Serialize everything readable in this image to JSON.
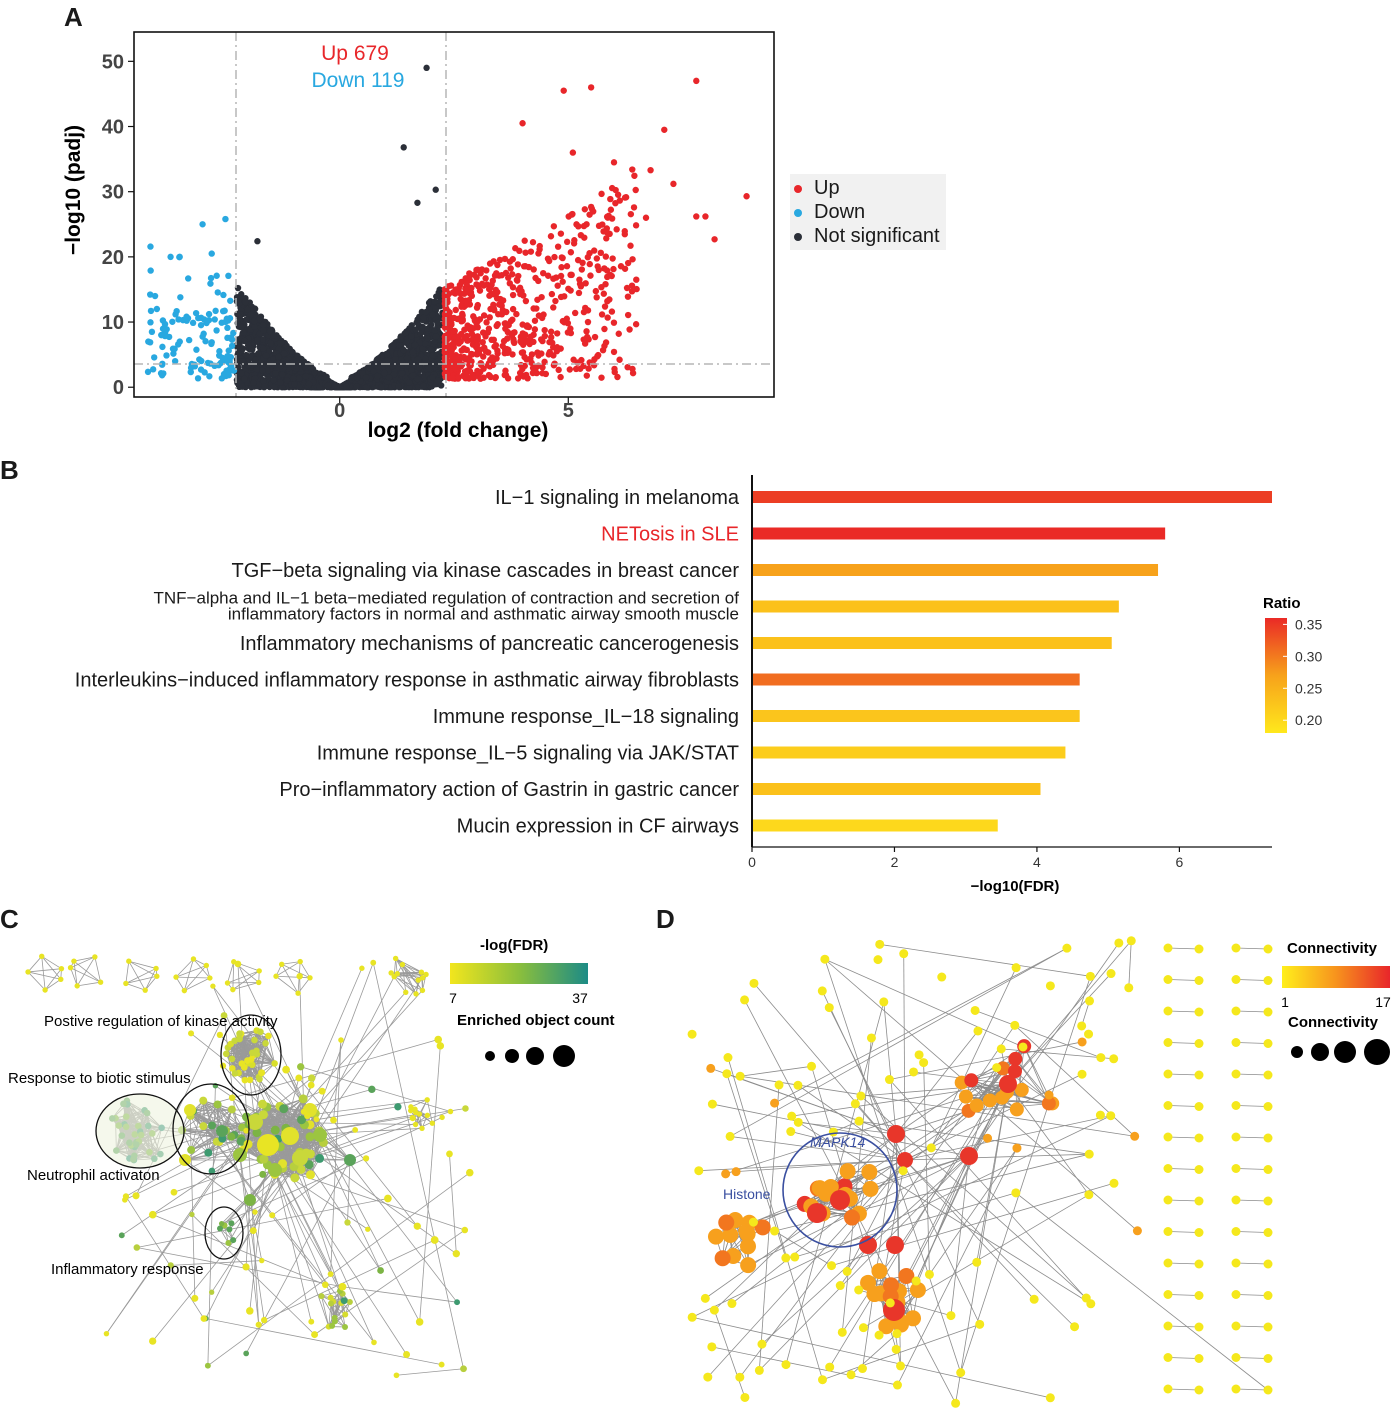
{
  "panels": {
    "a": "A",
    "b": "B",
    "c": "C",
    "d": "D"
  },
  "colors": {
    "up": "#e8262a",
    "down": "#29a8e0",
    "ns": "#2b2f38",
    "threshold": "#b5b5b5"
  },
  "volcano": {
    "chart_data": {
      "type": "scatter",
      "xlabel": "log2 (fold change)",
      "ylabel": "−log10 (padj)",
      "xlim": [
        -4.5,
        9.5
      ],
      "ylim": [
        -1.5,
        54.5
      ],
      "xticks": [
        0,
        5
      ],
      "yticks": [
        0,
        10,
        20,
        30,
        40,
        50
      ],
      "thresholds": {
        "x": [
          -2.3,
          2.3
        ],
        "y": 1.3
      },
      "annotation_up": "Up 679",
      "annotation_down": "Down 119",
      "legend": [
        {
          "name": "Up",
          "color": "#e8262a"
        },
        {
          "name": "Down",
          "color": "#29a8e0"
        },
        {
          "name": "Not significant",
          "color": "#2b2f38"
        }
      ],
      "counts": {
        "up": 679,
        "down": 119
      },
      "highlight_points": {
        "up": [
          [
            7.8,
            47.0
          ],
          [
            5.5,
            46.0
          ],
          [
            4.9,
            45.5
          ],
          [
            7.1,
            39.5
          ],
          [
            4.0,
            40.5
          ],
          [
            8.9,
            29.3
          ],
          [
            7.3,
            31.2
          ],
          [
            8.0,
            26.2
          ],
          [
            8.2,
            22.7
          ],
          [
            6.8,
            33.3
          ],
          [
            6.4,
            33.4
          ],
          [
            6.7,
            26.0
          ],
          [
            7.8,
            26.2
          ],
          [
            5.1,
            36.0
          ],
          [
            6.0,
            34.5
          ],
          [
            5.4,
            25.0
          ]
        ],
        "down": [
          [
            -3.7,
            20.0
          ],
          [
            -3.5,
            20.0
          ],
          [
            -3.0,
            25.0
          ],
          [
            -2.5,
            25.8
          ],
          [
            -4.0,
            12.0
          ],
          [
            -3.9,
            8.0
          ],
          [
            -2.8,
            20.5
          ],
          [
            -3.6,
            4.0
          ]
        ],
        "ns": [
          [
            1.9,
            49.0
          ],
          [
            1.4,
            36.8
          ],
          [
            2.1,
            30.3
          ],
          [
            1.7,
            28.3
          ],
          [
            -1.8,
            22.4
          ]
        ]
      }
    }
  },
  "pathways": {
    "chart_data": {
      "type": "bar",
      "orientation": "horizontal",
      "xlabel": "−log10(FDR)",
      "xlim": [
        0,
        7.3
      ],
      "xticks": [
        0,
        2,
        4,
        6
      ],
      "categories": [
        "IL−1 signaling in melanoma",
        "NETosis in SLE",
        "TGF−beta signaling via kinase cascades in breast cancer",
        "TNF−alpha and IL−1 beta−mediated regulation of contraction and secretion of\ninflammatory factors in normal and asthmatic airway smooth muscle",
        "Inflammatory mechanisms of pancreatic cancerogenesis",
        "Interleukins−induced inflammatory response in asthmatic airway fibroblasts",
        "Immune response_IL−18 signaling",
        "Immune response_IL−5 signaling via JAK/STAT",
        "Pro−inflammatory action of Gastrin in gastric cancer",
        "Mucin expression in CF airways"
      ],
      "values": [
        7.3,
        5.8,
        5.7,
        5.15,
        5.05,
        4.6,
        4.6,
        4.4,
        4.05,
        3.45
      ],
      "ratio": [
        0.345,
        0.36,
        0.27,
        0.23,
        0.23,
        0.31,
        0.225,
        0.215,
        0.23,
        0.2
      ],
      "highlight_label_index": 1,
      "highlight_label_color": "#e8262a",
      "colorbar": {
        "title": "Ratio",
        "ticks": [
          "0.35",
          "0.30",
          "0.25",
          "0.20"
        ],
        "range": [
          0.18,
          0.36
        ]
      }
    }
  },
  "networkC": {
    "legend_title": "-log(FDR)",
    "legend_min": "7",
    "legend_max": "37",
    "size_title": "Enriched object count",
    "labels": {
      "kinase": "Postive regulation of kinase activity",
      "biotic": "Response to biotic stimulus",
      "neutrophil": "Neutrophil activaton",
      "inflammatory": "Inflammatory response"
    }
  },
  "networkD": {
    "legend_title": "Connectivity",
    "legend_min": "1",
    "legend_max": "17",
    "size_title": "Connectivity",
    "labels": {
      "mapk14": "MAPK14",
      "histone": "Histone"
    }
  }
}
